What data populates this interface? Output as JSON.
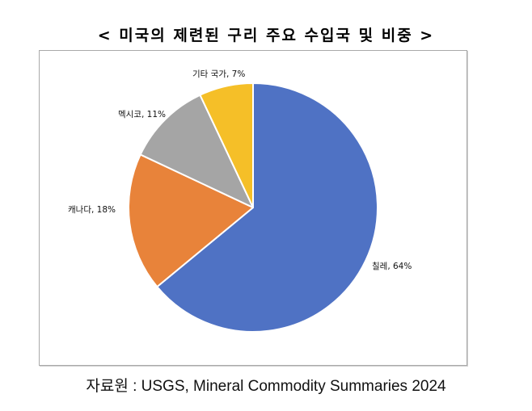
{
  "title": "< 미국의 제련된 구리 주요 수입국 및 비중 >",
  "source": "자료원 : USGS, Mineral Commodity Summaries 2024",
  "colors": {
    "chile": "#4f72c4",
    "canada": "#e8833a",
    "mexico": "#a5a5a5",
    "other": "#f5bf28",
    "border": "#a9a9a9"
  },
  "labels": {
    "chile": "칠레, 64%",
    "canada": "캐나다, 18%",
    "mexico": "멕시코, 11%",
    "other": "기타 국가, 7%"
  },
  "chart_data": {
    "type": "pie",
    "title": "< 미국의 제련된 구리 주요 수입국 및 비중 >",
    "categories": [
      "칠레",
      "캐나다",
      "멕시코",
      "기타 국가"
    ],
    "values": [
      64,
      18,
      11,
      7
    ],
    "unit": "%",
    "start_angle": "12 o'clock, clockwise",
    "colors": [
      "#4f72c4",
      "#e8833a",
      "#a5a5a5",
      "#f5bf28"
    ],
    "data_labels": [
      "칠레, 64%",
      "캐나다, 18%",
      "멕시코, 11%",
      "기타 국가, 7%"
    ],
    "legend": "none",
    "source": "자료원 : USGS, Mineral Commodity Summaries 2024"
  }
}
